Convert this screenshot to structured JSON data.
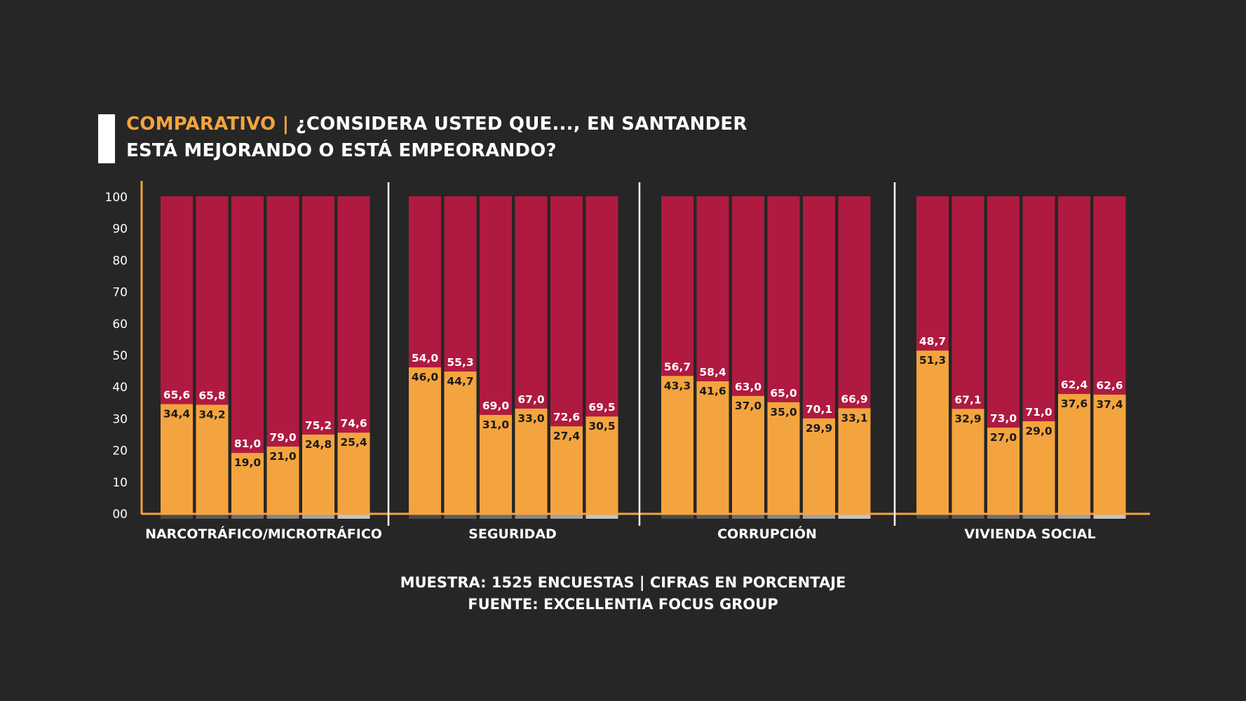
{
  "title": {
    "prefix": "COMPARATIVO |",
    "line1": "¿CONSIDERA USTED QUE..., EN SANTANDER",
    "line2": "ESTÁ MEJORANDO O ESTÁ EMPEORANDO?"
  },
  "footer": {
    "line1": "MUESTRA: 1525 ENCUESTAS | CIFRAS EN PORCENTAJE",
    "line2": "FUENTE: EXCELLENTIA FOCUS GROUP"
  },
  "colors": {
    "background": "#262626",
    "improving": "#f4a43e",
    "worsening": "#b01a40",
    "axis": "#f4a43e",
    "separator": "#ffffff",
    "title_accent": "#f4a43e"
  },
  "chart_data": {
    "type": "bar",
    "stacked": true,
    "ylim": [
      0,
      100
    ],
    "yticks": [
      "00",
      "10",
      "20",
      "30",
      "40",
      "50",
      "60",
      "70",
      "80",
      "90",
      "100"
    ],
    "groups": [
      {
        "label": "NARCOTRÁFICO/MICROTRÁFICO",
        "improving": [
          34.4,
          34.2,
          19.0,
          21.0,
          24.8,
          25.4
        ],
        "improving_labels": [
          "34,4",
          "34,2",
          "19,0",
          "21,0",
          "24,8",
          "25,4"
        ],
        "worsening": [
          65.6,
          65.8,
          81.0,
          79.0,
          75.2,
          74.6
        ],
        "worsening_labels": [
          "65,6",
          "65,8",
          "81,0",
          "79,0",
          "75,2",
          "74,6"
        ]
      },
      {
        "label": "SEGURIDAD",
        "improving": [
          46.0,
          44.7,
          31.0,
          33.0,
          27.4,
          30.5
        ],
        "improving_labels": [
          "46,0",
          "44,7",
          "31,0",
          "33,0",
          "27,4",
          "30,5"
        ],
        "worsening": [
          54.0,
          55.3,
          69.0,
          67.0,
          72.6,
          69.5
        ],
        "worsening_labels": [
          "54,0",
          "55,3",
          "69,0",
          "67,0",
          "72,6",
          "69,5"
        ]
      },
      {
        "label": "CORRUPCIÓN",
        "improving": [
          43.3,
          41.6,
          37.0,
          35.0,
          29.9,
          33.1
        ],
        "improving_labels": [
          "43,3",
          "41,6",
          "37,0",
          "35,0",
          "29,9",
          "33,1"
        ],
        "worsening": [
          56.7,
          58.4,
          63.0,
          65.0,
          70.1,
          66.9
        ],
        "worsening_labels": [
          "56,7",
          "58,4",
          "63,0",
          "65,0",
          "70,1",
          "66,9"
        ]
      },
      {
        "label": "VIVIENDA SOCIAL",
        "improving": [
          51.3,
          32.9,
          27.0,
          29.0,
          37.6,
          37.4
        ],
        "improving_labels": [
          "51,3",
          "32,9",
          "27,0",
          "29,0",
          "37,6",
          "37,4"
        ],
        "worsening": [
          48.7,
          67.1,
          73.0,
          71.0,
          62.4,
          62.6
        ],
        "worsening_labels": [
          "48,7",
          "67,1",
          "73,0",
          "71,0",
          "62,4",
          "62,6"
        ]
      }
    ],
    "base_strip_colors": [
      "#4a4a4a",
      "#5c5c5c",
      "#707070",
      "#868686",
      "#a2a2a2",
      "#c4c4c4"
    ]
  }
}
